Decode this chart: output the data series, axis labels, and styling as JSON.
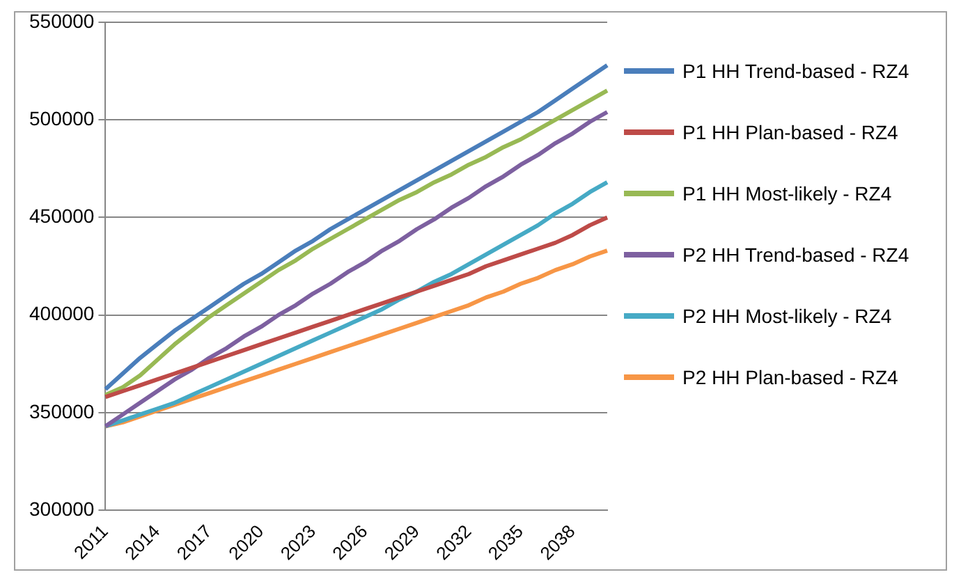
{
  "chart_data": {
    "type": "line",
    "categories": [
      "2011",
      null,
      null,
      "2014",
      null,
      null,
      "2017",
      null,
      null,
      "2020",
      null,
      null,
      "2023",
      null,
      null,
      "2026",
      null,
      null,
      "2029",
      null,
      null,
      "2032",
      null,
      null,
      "2035",
      null,
      null,
      "2038",
      null,
      null
    ],
    "ylim": [
      300000,
      550000
    ],
    "yticks": [
      300000,
      350000,
      400000,
      450000,
      500000,
      550000
    ],
    "grid": "y",
    "legend": "right",
    "marker": "none",
    "series": [
      {
        "name": "P1 HH Trend-based - RZ4",
        "color": "#4a7ebb",
        "values": [
          362000,
          370000,
          378000,
          385000,
          392000,
          398000,
          404000,
          410000,
          416000,
          421000,
          427000,
          433000,
          438000,
          444000,
          449000,
          454000,
          459000,
          464000,
          469000,
          474000,
          479000,
          484000,
          489000,
          494000,
          499000,
          504000,
          510000,
          516000,
          522000,
          528000
        ]
      },
      {
        "name": "P1 HH Plan-based - RZ4",
        "color": "#be4b48",
        "values": [
          358000,
          361000,
          364000,
          367000,
          370000,
          373000,
          376000,
          379000,
          382000,
          385000,
          388000,
          391000,
          394000,
          397000,
          400000,
          403000,
          406000,
          409000,
          412000,
          415000,
          418000,
          421000,
          425000,
          428000,
          431000,
          434000,
          437000,
          441000,
          446000,
          450000
        ]
      },
      {
        "name": "P1 HH Most-likely - RZ4",
        "color": "#98b954",
        "values": [
          359000,
          363000,
          369000,
          377000,
          385000,
          392000,
          399000,
          405000,
          411000,
          417000,
          423000,
          428000,
          434000,
          439000,
          444000,
          449000,
          454000,
          459000,
          463000,
          468000,
          472000,
          477000,
          481000,
          486000,
          490000,
          495000,
          500000,
          505000,
          510000,
          515000
        ]
      },
      {
        "name": "P2 HH Trend-based - RZ4",
        "color": "#7d60a0",
        "values": [
          343000,
          349000,
          355000,
          361000,
          367000,
          372000,
          378000,
          383000,
          389000,
          394000,
          400000,
          405000,
          411000,
          416000,
          422000,
          427000,
          433000,
          438000,
          444000,
          449000,
          455000,
          460000,
          466000,
          471000,
          477000,
          482000,
          488000,
          493000,
          499000,
          504000
        ]
      },
      {
        "name": "P2 HH Most-likely - RZ4",
        "color": "#46aac5",
        "values": [
          343000,
          346000,
          349000,
          352000,
          355000,
          359000,
          363000,
          367000,
          371000,
          375000,
          379000,
          383000,
          387000,
          391000,
          395000,
          399000,
          403000,
          408000,
          412000,
          417000,
          421000,
          426000,
          431000,
          436000,
          441000,
          446000,
          452000,
          457000,
          463000,
          468000
        ]
      },
      {
        "name": "P2 HH Plan-based - RZ4",
        "color": "#f79646",
        "values": [
          343000,
          345000,
          348000,
          351000,
          354000,
          357000,
          360000,
          363000,
          366000,
          369000,
          372000,
          375000,
          378000,
          381000,
          384000,
          387000,
          390000,
          393000,
          396000,
          399000,
          402000,
          405000,
          409000,
          412000,
          416000,
          419000,
          423000,
          426000,
          430000,
          433000
        ]
      }
    ]
  }
}
